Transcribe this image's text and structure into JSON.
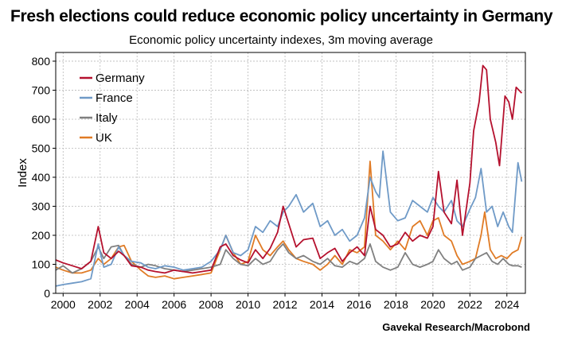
{
  "title": "Fresh elections could reduce economic policy uncertainty in Germany",
  "subtitle": "Economic policy uncertainty indexes, 3m moving average",
  "source": "Gavekal Research/Macrobond",
  "chart_data": {
    "type": "line",
    "xlabel": "",
    "ylabel": "Index",
    "xlim": [
      1999.6,
      2025.0
    ],
    "ylim": [
      0,
      830
    ],
    "yticks": [
      0,
      100,
      200,
      300,
      400,
      500,
      600,
      700,
      800
    ],
    "xticks": [
      2000,
      2002,
      2004,
      2006,
      2008,
      2010,
      2012,
      2014,
      2016,
      2018,
      2020,
      2022,
      2024
    ],
    "grid": true,
    "legend_position": "top-left",
    "series": [
      {
        "name": "Germany",
        "color": "#b5112e",
        "points": [
          [
            1999.6,
            115
          ],
          [
            2000.0,
            105
          ],
          [
            2000.5,
            95
          ],
          [
            2001.0,
            85
          ],
          [
            2001.5,
            110
          ],
          [
            2001.9,
            230
          ],
          [
            2002.2,
            140
          ],
          [
            2002.6,
            120
          ],
          [
            2003.0,
            145
          ],
          [
            2003.3,
            130
          ],
          [
            2003.7,
            95
          ],
          [
            2004.2,
            90
          ],
          [
            2004.6,
            80
          ],
          [
            2005.0,
            75
          ],
          [
            2005.5,
            70
          ],
          [
            2006.0,
            80
          ],
          [
            2006.5,
            75
          ],
          [
            2007.0,
            70
          ],
          [
            2007.5,
            75
          ],
          [
            2008.0,
            80
          ],
          [
            2008.5,
            160
          ],
          [
            2008.8,
            170
          ],
          [
            2009.2,
            130
          ],
          [
            2009.6,
            115
          ],
          [
            2010.0,
            105
          ],
          [
            2010.4,
            150
          ],
          [
            2010.8,
            120
          ],
          [
            2011.2,
            155
          ],
          [
            2011.6,
            210
          ],
          [
            2011.9,
            300
          ],
          [
            2012.2,
            240
          ],
          [
            2012.6,
            160
          ],
          [
            2013.0,
            185
          ],
          [
            2013.5,
            190
          ],
          [
            2013.9,
            120
          ],
          [
            2014.3,
            140
          ],
          [
            2014.7,
            155
          ],
          [
            2015.1,
            110
          ],
          [
            2015.5,
            140
          ],
          [
            2015.9,
            160
          ],
          [
            2016.3,
            130
          ],
          [
            2016.6,
            300
          ],
          [
            2016.9,
            220
          ],
          [
            2017.3,
            200
          ],
          [
            2017.7,
            160
          ],
          [
            2018.1,
            170
          ],
          [
            2018.5,
            210
          ],
          [
            2018.9,
            180
          ],
          [
            2019.3,
            200
          ],
          [
            2019.7,
            190
          ],
          [
            2020.0,
            230
          ],
          [
            2020.3,
            420
          ],
          [
            2020.6,
            280
          ],
          [
            2021.0,
            240
          ],
          [
            2021.3,
            390
          ],
          [
            2021.6,
            200
          ],
          [
            2022.0,
            380
          ],
          [
            2022.2,
            560
          ],
          [
            2022.5,
            660
          ],
          [
            2022.7,
            785
          ],
          [
            2022.9,
            770
          ],
          [
            2023.1,
            600
          ],
          [
            2023.4,
            520
          ],
          [
            2023.6,
            440
          ],
          [
            2023.9,
            680
          ],
          [
            2024.1,
            660
          ],
          [
            2024.3,
            600
          ],
          [
            2024.5,
            710
          ],
          [
            2024.8,
            690
          ]
        ]
      },
      {
        "name": "France",
        "color": "#6f9ac7",
        "points": [
          [
            1999.6,
            25
          ],
          [
            2000.0,
            30
          ],
          [
            2000.5,
            35
          ],
          [
            2001.0,
            40
          ],
          [
            2001.5,
            50
          ],
          [
            2001.9,
            170
          ],
          [
            2002.2,
            90
          ],
          [
            2002.6,
            100
          ],
          [
            2003.0,
            160
          ],
          [
            2003.3,
            130
          ],
          [
            2003.7,
            110
          ],
          [
            2004.2,
            105
          ],
          [
            2004.6,
            90
          ],
          [
            2005.0,
            85
          ],
          [
            2005.5,
            95
          ],
          [
            2006.0,
            90
          ],
          [
            2006.5,
            80
          ],
          [
            2007.0,
            85
          ],
          [
            2007.5,
            90
          ],
          [
            2008.0,
            110
          ],
          [
            2008.5,
            150
          ],
          [
            2008.8,
            200
          ],
          [
            2009.2,
            140
          ],
          [
            2009.6,
            130
          ],
          [
            2010.0,
            150
          ],
          [
            2010.4,
            230
          ],
          [
            2010.8,
            210
          ],
          [
            2011.2,
            250
          ],
          [
            2011.6,
            230
          ],
          [
            2011.9,
            280
          ],
          [
            2012.2,
            300
          ],
          [
            2012.6,
            340
          ],
          [
            2013.0,
            280
          ],
          [
            2013.5,
            310
          ],
          [
            2013.9,
            230
          ],
          [
            2014.3,
            250
          ],
          [
            2014.7,
            200
          ],
          [
            2015.1,
            220
          ],
          [
            2015.5,
            180
          ],
          [
            2015.9,
            200
          ],
          [
            2016.3,
            260
          ],
          [
            2016.6,
            400
          ],
          [
            2016.9,
            350
          ],
          [
            2017.1,
            330
          ],
          [
            2017.3,
            490
          ],
          [
            2017.7,
            280
          ],
          [
            2018.1,
            250
          ],
          [
            2018.5,
            260
          ],
          [
            2018.9,
            320
          ],
          [
            2019.3,
            300
          ],
          [
            2019.7,
            280
          ],
          [
            2020.0,
            330
          ],
          [
            2020.3,
            300
          ],
          [
            2020.6,
            280
          ],
          [
            2021.0,
            320
          ],
          [
            2021.3,
            250
          ],
          [
            2021.6,
            230
          ],
          [
            2022.0,
            290
          ],
          [
            2022.3,
            330
          ],
          [
            2022.6,
            430
          ],
          [
            2022.9,
            280
          ],
          [
            2023.2,
            300
          ],
          [
            2023.5,
            230
          ],
          [
            2023.8,
            280
          ],
          [
            2024.1,
            230
          ],
          [
            2024.3,
            210
          ],
          [
            2024.6,
            450
          ],
          [
            2024.8,
            385
          ]
        ]
      },
      {
        "name": "Italy",
        "color": "#808080",
        "points": [
          [
            1999.6,
            80
          ],
          [
            2000.0,
            95
          ],
          [
            2000.5,
            70
          ],
          [
            2001.0,
            85
          ],
          [
            2001.5,
            110
          ],
          [
            2001.9,
            160
          ],
          [
            2002.2,
            120
          ],
          [
            2002.6,
            160
          ],
          [
            2003.0,
            165
          ],
          [
            2003.3,
            130
          ],
          [
            2003.7,
            100
          ],
          [
            2004.2,
            90
          ],
          [
            2004.6,
            100
          ],
          [
            2005.0,
            95
          ],
          [
            2005.5,
            85
          ],
          [
            2006.0,
            80
          ],
          [
            2006.5,
            75
          ],
          [
            2007.0,
            80
          ],
          [
            2007.5,
            85
          ],
          [
            2008.0,
            90
          ],
          [
            2008.5,
            100
          ],
          [
            2008.8,
            150
          ],
          [
            2009.2,
            120
          ],
          [
            2009.6,
            100
          ],
          [
            2010.0,
            95
          ],
          [
            2010.4,
            120
          ],
          [
            2010.8,
            100
          ],
          [
            2011.2,
            110
          ],
          [
            2011.6,
            150
          ],
          [
            2011.9,
            170
          ],
          [
            2012.2,
            140
          ],
          [
            2012.6,
            120
          ],
          [
            2013.0,
            130
          ],
          [
            2013.5,
            110
          ],
          [
            2013.9,
            100
          ],
          [
            2014.3,
            120
          ],
          [
            2014.7,
            95
          ],
          [
            2015.1,
            90
          ],
          [
            2015.5,
            110
          ],
          [
            2015.9,
            100
          ],
          [
            2016.3,
            120
          ],
          [
            2016.6,
            170
          ],
          [
            2016.9,
            110
          ],
          [
            2017.3,
            90
          ],
          [
            2017.7,
            80
          ],
          [
            2018.1,
            90
          ],
          [
            2018.5,
            140
          ],
          [
            2018.9,
            100
          ],
          [
            2019.3,
            90
          ],
          [
            2019.7,
            100
          ],
          [
            2020.0,
            110
          ],
          [
            2020.3,
            150
          ],
          [
            2020.6,
            120
          ],
          [
            2021.0,
            100
          ],
          [
            2021.3,
            110
          ],
          [
            2021.6,
            80
          ],
          [
            2022.0,
            90
          ],
          [
            2022.3,
            120
          ],
          [
            2022.6,
            130
          ],
          [
            2022.9,
            140
          ],
          [
            2023.2,
            110
          ],
          [
            2023.5,
            100
          ],
          [
            2023.8,
            120
          ],
          [
            2024.1,
            100
          ],
          [
            2024.3,
            95
          ],
          [
            2024.6,
            95
          ],
          [
            2024.8,
            90
          ]
        ]
      },
      {
        "name": "UK",
        "color": "#e07b25",
        "points": [
          [
            1999.6,
            90
          ],
          [
            2000.0,
            80
          ],
          [
            2000.5,
            70
          ],
          [
            2001.0,
            70
          ],
          [
            2001.5,
            80
          ],
          [
            2001.9,
            120
          ],
          [
            2002.2,
            100
          ],
          [
            2002.6,
            120
          ],
          [
            2003.0,
            160
          ],
          [
            2003.3,
            165
          ],
          [
            2003.7,
            110
          ],
          [
            2004.2,
            80
          ],
          [
            2004.6,
            60
          ],
          [
            2005.0,
            55
          ],
          [
            2005.5,
            60
          ],
          [
            2006.0,
            50
          ],
          [
            2006.5,
            55
          ],
          [
            2007.0,
            60
          ],
          [
            2007.5,
            65
          ],
          [
            2008.0,
            70
          ],
          [
            2008.5,
            150
          ],
          [
            2008.8,
            200
          ],
          [
            2009.2,
            140
          ],
          [
            2009.6,
            100
          ],
          [
            2010.0,
            110
          ],
          [
            2010.4,
            200
          ],
          [
            2010.8,
            150
          ],
          [
            2011.2,
            130
          ],
          [
            2011.6,
            160
          ],
          [
            2011.9,
            180
          ],
          [
            2012.2,
            150
          ],
          [
            2012.6,
            120
          ],
          [
            2013.0,
            110
          ],
          [
            2013.5,
            100
          ],
          [
            2013.9,
            80
          ],
          [
            2014.3,
            100
          ],
          [
            2014.7,
            130
          ],
          [
            2015.1,
            100
          ],
          [
            2015.5,
            150
          ],
          [
            2015.9,
            140
          ],
          [
            2016.3,
            160
          ],
          [
            2016.6,
            455
          ],
          [
            2016.9,
            200
          ],
          [
            2017.3,
            180
          ],
          [
            2017.7,
            150
          ],
          [
            2018.1,
            180
          ],
          [
            2018.5,
            150
          ],
          [
            2018.9,
            230
          ],
          [
            2019.3,
            250
          ],
          [
            2019.7,
            200
          ],
          [
            2020.0,
            250
          ],
          [
            2020.3,
            260
          ],
          [
            2020.6,
            200
          ],
          [
            2021.0,
            180
          ],
          [
            2021.3,
            130
          ],
          [
            2021.6,
            100
          ],
          [
            2022.0,
            110
          ],
          [
            2022.3,
            120
          ],
          [
            2022.6,
            200
          ],
          [
            2022.8,
            280
          ],
          [
            2023.1,
            150
          ],
          [
            2023.4,
            120
          ],
          [
            2023.7,
            130
          ],
          [
            2024.0,
            120
          ],
          [
            2024.3,
            140
          ],
          [
            2024.6,
            150
          ],
          [
            2024.8,
            195
          ]
        ]
      }
    ]
  }
}
